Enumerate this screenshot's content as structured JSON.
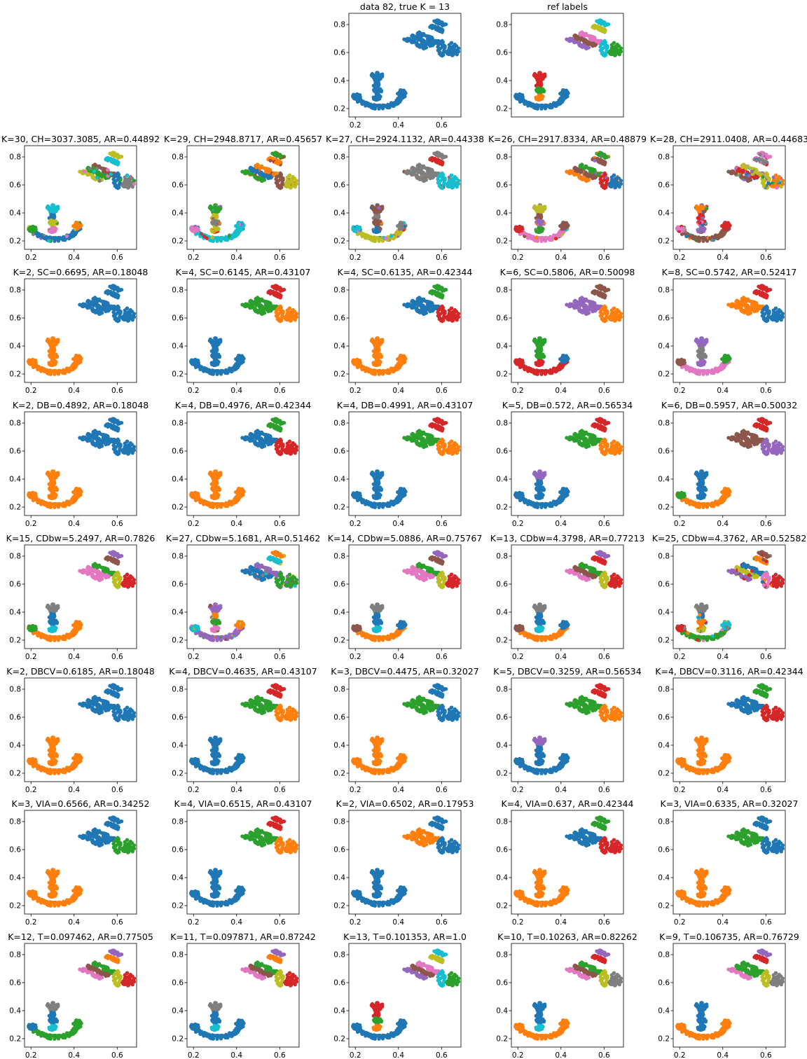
{
  "figure": {
    "description_free": true,
    "palette": [
      "#1f77b4",
      "#ff7f0e",
      "#2ca02c",
      "#d62728",
      "#9467bd",
      "#8c564b",
      "#e377c2",
      "#7f7f7f",
      "#bcbd22",
      "#17becf"
    ]
  },
  "chart_data": [
    {
      "type": "scatter",
      "title": "data 82, true K = 13",
      "shape": "uni",
      "xlim": [
        0.17,
        0.69
      ],
      "ylim": [
        0.14,
        0.88
      ],
      "xticks": [
        "0.2",
        "0.4",
        "0.6"
      ],
      "yticks": [
        "0.2",
        "0.4",
        "0.6",
        "0.8"
      ]
    },
    {
      "type": "scatter",
      "title": "ref labels",
      "shape": "ref",
      "xlim": [
        0.17,
        0.69
      ],
      "ylim": [
        0.14,
        0.88
      ],
      "xticks": [],
      "yticks": [
        "0.2",
        "0.4",
        "0.6",
        "0.8"
      ]
    },
    {
      "type": "scatter",
      "title": "K=30, CH=3037.3085, AR=0.44892",
      "shape": "many",
      "seed": 1
    },
    {
      "type": "scatter",
      "title": "K=29, CH=2948.8717, AR=0.45657",
      "shape": "many",
      "seed": 2
    },
    {
      "type": "scatter",
      "title": "K=27, CH=2924.1132, AR=0.44338",
      "shape": "many",
      "seed": 3
    },
    {
      "type": "scatter",
      "title": "K=26, CH=2917.8334, AR=0.48879",
      "shape": "many",
      "seed": 4
    },
    {
      "type": "scatter",
      "title": "K=28, CH=2911.0408, AR=0.44683",
      "shape": "many",
      "seed": 5
    },
    {
      "type": "scatter",
      "title": "K=2, SC=0.6695, AR=0.18048",
      "shape": "k2a"
    },
    {
      "type": "scatter",
      "title": "K=4, SC=0.6145, AR=0.43107",
      "shape": "k4a"
    },
    {
      "type": "scatter",
      "title": "K=4, SC=0.6135, AR=0.42344",
      "shape": "k4b"
    },
    {
      "type": "scatter",
      "title": "K=6, SC=0.5806, AR=0.50098",
      "shape": "k6a"
    },
    {
      "type": "scatter",
      "title": "K=8, SC=0.5742, AR=0.52417",
      "shape": "k8a"
    },
    {
      "type": "scatter",
      "title": "K=2, DB=0.4892, AR=0.18048",
      "shape": "k2a"
    },
    {
      "type": "scatter",
      "title": "K=4, DB=0.4976, AR=0.42344",
      "shape": "k4b"
    },
    {
      "type": "scatter",
      "title": "K=4, DB=0.4991, AR=0.43107",
      "shape": "k4a"
    },
    {
      "type": "scatter",
      "title": "K=5, DB=0.572, AR=0.56534",
      "shape": "k5a"
    },
    {
      "type": "scatter",
      "title": "K=6, DB=0.5957, AR=0.50032",
      "shape": "k6b"
    },
    {
      "type": "scatter",
      "title": "K=15, CDbw=5.2497, AR=0.7826",
      "shape": "k15"
    },
    {
      "type": "scatter",
      "title": "K=27, CDbw=5.1681, AR=0.51462",
      "shape": "many",
      "seed": 6
    },
    {
      "type": "scatter",
      "title": "K=14, CDbw=5.0886, AR=0.75767",
      "shape": "k14"
    },
    {
      "type": "scatter",
      "title": "K=13, CDbw=4.3798, AR=0.77213",
      "shape": "k13c"
    },
    {
      "type": "scatter",
      "title": "K=25, CDbw=4.3762, AR=0.52582",
      "shape": "many",
      "seed": 7
    },
    {
      "type": "scatter",
      "title": "K=2, DBCV=0.6185, AR=0.18048",
      "shape": "k2a"
    },
    {
      "type": "scatter",
      "title": "K=4, DBCV=0.4635, AR=0.43107",
      "shape": "k4a"
    },
    {
      "type": "scatter",
      "title": "K=3, DBCV=0.4475, AR=0.32027",
      "shape": "k3a"
    },
    {
      "type": "scatter",
      "title": "K=5, DBCV=0.3259, AR=0.56534",
      "shape": "k5a"
    },
    {
      "type": "scatter",
      "title": "K=4, DBCV=0.3116, AR=0.42344",
      "shape": "k4b"
    },
    {
      "type": "scatter",
      "title": "K=3, VIA=0.6566, AR=0.34252",
      "shape": "k3b"
    },
    {
      "type": "scatter",
      "title": "K=4, VIA=0.6515, AR=0.43107",
      "shape": "k4a"
    },
    {
      "type": "scatter",
      "title": "K=2, VIA=0.6502, AR=0.17953",
      "shape": "k2b"
    },
    {
      "type": "scatter",
      "title": "K=4, VIA=0.637, AR=0.42344",
      "shape": "k4b"
    },
    {
      "type": "scatter",
      "title": "K=3, VIA=0.6335, AR=0.32027",
      "shape": "k3a"
    },
    {
      "type": "scatter",
      "title": "K=12, T=0.097462, AR=0.77505",
      "shape": "k12"
    },
    {
      "type": "scatter",
      "title": "K=11, T=0.097871, AR=0.87242",
      "shape": "k11"
    },
    {
      "type": "scatter",
      "title": "K=13, T=0.101353, AR=1.0",
      "shape": "ref"
    },
    {
      "type": "scatter",
      "title": "K=10, T=0.10263, AR=0.82262",
      "shape": "k10"
    },
    {
      "type": "scatter",
      "title": "K=9, T=0.106735, AR=0.76729",
      "shape": "k9"
    }
  ],
  "axes_common": {
    "xlim": [
      0.17,
      0.69
    ],
    "ylim": [
      0.14,
      0.88
    ],
    "xticks": [
      "0.2",
      "0.4",
      "0.6"
    ],
    "yticks": [
      "0.2",
      "0.4",
      "0.6",
      "0.8"
    ]
  }
}
